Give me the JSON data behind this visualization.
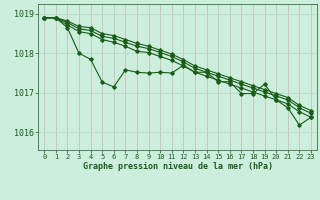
{
  "title": "Graphe pression niveau de la mer (hPa)",
  "background_color": "#cceedd",
  "grid_color_v": "#aaccbb",
  "grid_color_h": "#bbddcc",
  "line_color": "#1a5c1a",
  "xlim": [
    -0.5,
    23.5
  ],
  "ylim": [
    1015.55,
    1019.25
  ],
  "yticks": [
    1016,
    1017,
    1018,
    1019
  ],
  "xticks": [
    0,
    1,
    2,
    3,
    4,
    5,
    6,
    7,
    8,
    9,
    10,
    11,
    12,
    13,
    14,
    15,
    16,
    17,
    18,
    19,
    20,
    21,
    22,
    23
  ],
  "lines": [
    [
      1018.9,
      1018.9,
      1018.65,
      1018.0,
      1017.85,
      1017.27,
      1017.15,
      1017.58,
      1017.52,
      1017.5,
      1017.52,
      1017.5,
      1017.7,
      1017.52,
      1017.52,
      1017.28,
      1017.28,
      1016.98,
      1016.98,
      1017.22,
      1016.82,
      1016.62,
      1016.18,
      1016.38
    ],
    [
      1018.9,
      1018.9,
      1018.72,
      1018.55,
      1018.5,
      1018.35,
      1018.28,
      1018.18,
      1018.05,
      1018.02,
      1017.92,
      1017.82,
      1017.68,
      1017.52,
      1017.42,
      1017.32,
      1017.22,
      1017.12,
      1017.02,
      1016.92,
      1016.82,
      1016.72,
      1016.52,
      1016.38
    ],
    [
      1018.9,
      1018.9,
      1018.78,
      1018.62,
      1018.58,
      1018.43,
      1018.38,
      1018.28,
      1018.18,
      1018.12,
      1018.02,
      1017.92,
      1017.78,
      1017.62,
      1017.52,
      1017.42,
      1017.32,
      1017.22,
      1017.12,
      1017.02,
      1016.92,
      1016.82,
      1016.62,
      1016.48
    ],
    [
      1018.9,
      1018.9,
      1018.82,
      1018.68,
      1018.65,
      1018.5,
      1018.45,
      1018.35,
      1018.25,
      1018.18,
      1018.08,
      1017.98,
      1017.84,
      1017.68,
      1017.58,
      1017.48,
      1017.38,
      1017.28,
      1017.18,
      1017.08,
      1016.98,
      1016.88,
      1016.68,
      1016.55
    ]
  ]
}
